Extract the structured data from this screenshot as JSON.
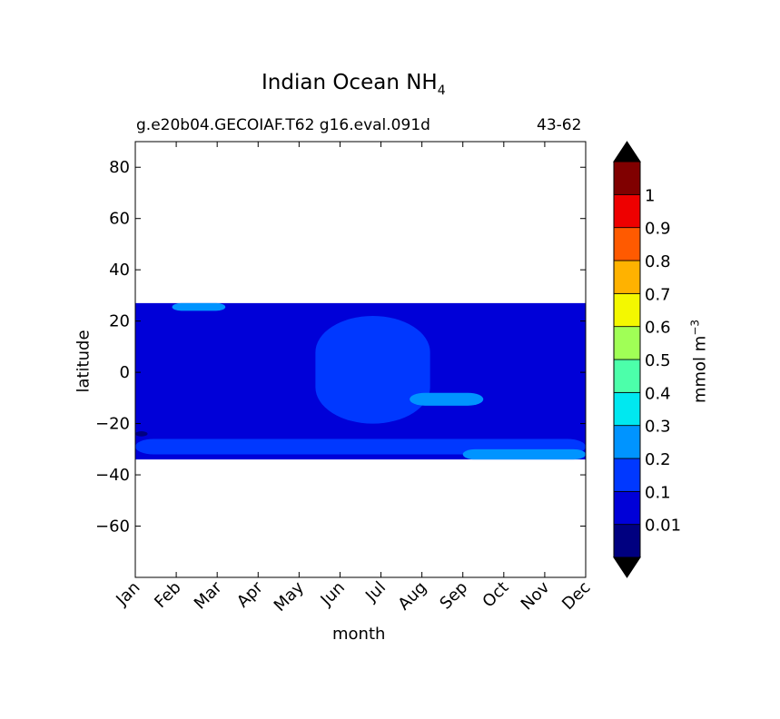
{
  "title_main": "Indian Ocean NH",
  "title_sub": "4",
  "subtitle_left": "g.e20b04.GECOIAF.T62 g16.eval.091d",
  "subtitle_right": "43-62",
  "colorbar_unit": "mmol m",
  "colorbar_unit_exp": "−3",
  "chart_data": {
    "type": "heatmap",
    "title": "Indian Ocean NH4",
    "xlabel": "month",
    "ylabel": "latitude",
    "x_categories": [
      "Jan",
      "Feb",
      "Mar",
      "Apr",
      "May",
      "Jun",
      "Jul",
      "Aug",
      "Sep",
      "Oct",
      "Nov",
      "Dec"
    ],
    "ylim": [
      -80,
      90
    ],
    "yticks": [
      -60,
      -40,
      -20,
      0,
      20,
      40,
      60,
      80
    ],
    "ytick_labels": [
      "−60",
      "−40",
      "−20",
      "0",
      "20",
      "40",
      "60",
      "80"
    ],
    "data_lat_range": [
      -34,
      27
    ],
    "colorbar": {
      "levels": [
        0,
        0.01,
        0.1,
        0.2,
        0.3,
        0.4,
        0.5,
        0.6,
        0.7,
        0.8,
        0.9,
        1,
        1.1
      ],
      "tick_labels": [
        "0.01",
        "0.1",
        "0.2",
        "0.3",
        "0.4",
        "0.5",
        "0.6",
        "0.7",
        "0.8",
        "0.9",
        "1"
      ],
      "colors": [
        "#000080",
        "#0000d8",
        "#0038ff",
        "#0094ff",
        "#00e8f0",
        "#4cffaa",
        "#a0ff56",
        "#f4f800",
        "#ffb200",
        "#ff5a00",
        "#ee0000",
        "#800000"
      ],
      "extend": "both",
      "label": "mmol m−3"
    },
    "regions": [
      {
        "value": 0.05,
        "lat_range": [
          -34,
          27
        ],
        "month_range": [
          0,
          11
        ],
        "note": "background 0.01-0.1"
      },
      {
        "value": 0.15,
        "lat": [
          -20,
          22
        ],
        "month": [
          4.4,
          7.2
        ],
        "note": "central 0.1-0.2 band"
      },
      {
        "value": 0.25,
        "lat": [
          -13,
          -8
        ],
        "month": [
          6.7,
          8.5
        ],
        "note": "0.2-0.3 patch near Aug"
      },
      {
        "value": 0.15,
        "lat": [
          -32,
          -26
        ],
        "month": [
          0,
          11
        ],
        "note": "southern 0.1-0.2 band"
      },
      {
        "value": 0.25,
        "lat": [
          -34,
          -30
        ],
        "month": [
          8.0,
          11
        ],
        "note": "southern 0.2-0.3 band"
      },
      {
        "value": 0.25,
        "lat": [
          24,
          27
        ],
        "month": [
          0.9,
          2.2
        ],
        "note": "northern 0.2-0.3 patch"
      },
      {
        "value": 0.005,
        "lat": [
          -25,
          -23
        ],
        "month": [
          0,
          0.3
        ],
        "note": "<0.01 sliver"
      }
    ]
  }
}
